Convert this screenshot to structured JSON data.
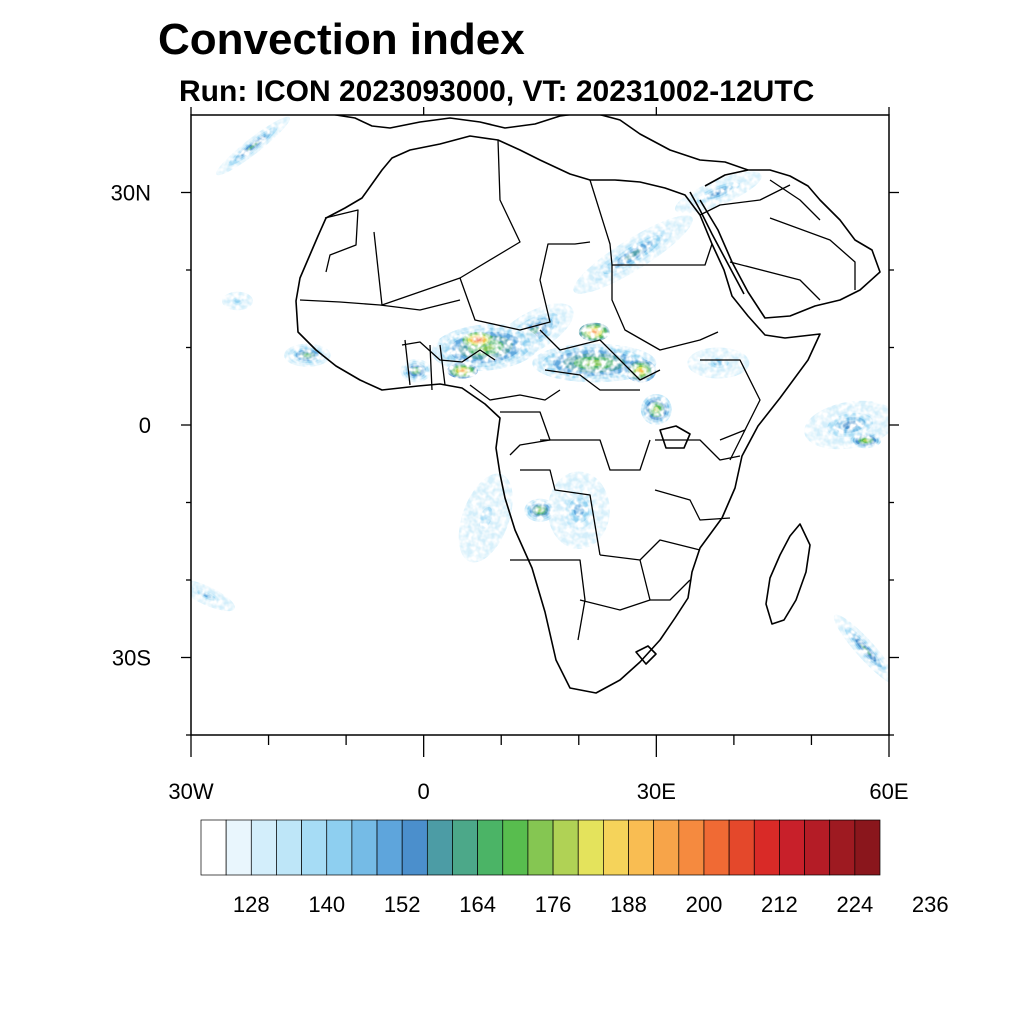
{
  "title": "Convection index",
  "subtitle": "Run: ICON 2023093000,  VT: 20231002-12UTC",
  "map": {
    "lon_range": [
      -30,
      60
    ],
    "lat_range": [
      -40,
      40
    ],
    "lat_ticks": [
      {
        "value": 30,
        "label": "30N"
      },
      {
        "value": 0,
        "label": "0"
      },
      {
        "value": -30,
        "label": "30S"
      }
    ],
    "lon_ticks": [
      {
        "value": -30,
        "label": "30W"
      },
      {
        "value": 0,
        "label": "0"
      },
      {
        "value": 30,
        "label": "30E"
      },
      {
        "value": 60,
        "label": "60E"
      }
    ],
    "minor_lon_ticks": [
      -20,
      -10,
      10,
      20,
      40,
      50
    ],
    "minor_lat_ticks": [
      20,
      10,
      -10,
      -20,
      -40
    ]
  },
  "colorbar": {
    "colors": [
      "#ffffff",
      "#e9f6fd",
      "#d3eefb",
      "#bee6f8",
      "#a6dcf5",
      "#8ecff0",
      "#75bbe6",
      "#5ea5dc",
      "#4b8fcc",
      "#4c9ca5",
      "#4ca889",
      "#4bb466",
      "#58bd4e",
      "#85c652",
      "#b0d255",
      "#e4e35c",
      "#f5d35a",
      "#f9bd52",
      "#f7a449",
      "#f58a3f",
      "#f06a34",
      "#e4482b",
      "#d92a27",
      "#c8202a",
      "#b41c26",
      "#9e1a21",
      "#8a161c"
    ],
    "labels": [
      "128",
      "140",
      "152",
      "164",
      "176",
      "188",
      "200",
      "212",
      "224",
      "236"
    ],
    "label_every": 3,
    "label_first_boundary": 2
  },
  "fields": [
    {
      "lon": 27,
      "lat": 22,
      "rx": 9,
      "ry": 2.0,
      "rot": -32,
      "level": 9
    },
    {
      "lon": 38,
      "lat": 30,
      "rx": 6,
      "ry": 1.6,
      "rot": -22,
      "level": 8
    },
    {
      "lon": 14,
      "lat": 12,
      "rx": 6,
      "ry": 2.5,
      "rot": -30,
      "level": 10
    },
    {
      "lon": 8,
      "lat": 10,
      "rx": 7,
      "ry": 3,
      "rot": -5,
      "level": 13
    },
    {
      "lon": 7,
      "lat": 11,
      "rx": 2,
      "ry": 1,
      "rot": 0,
      "level": 21
    },
    {
      "lon": 5,
      "lat": 7,
      "rx": 2,
      "ry": 1,
      "rot": 0,
      "level": 18
    },
    {
      "lon": 22,
      "lat": 8,
      "rx": 8,
      "ry": 2.5,
      "rot": 0,
      "level": 13
    },
    {
      "lon": 22,
      "lat": 12,
      "rx": 2,
      "ry": 1.2,
      "rot": 0,
      "level": 19
    },
    {
      "lon": 28,
      "lat": 7,
      "rx": 2,
      "ry": 1.5,
      "rot": 0,
      "level": 17
    },
    {
      "lon": 30,
      "lat": 2,
      "rx": 2,
      "ry": 2,
      "rot": 0,
      "level": 14
    },
    {
      "lon": -15,
      "lat": 9,
      "rx": 3,
      "ry": 1.5,
      "rot": 0,
      "level": 11
    },
    {
      "lon": -1,
      "lat": 7,
      "rx": 2,
      "ry": 1.5,
      "rot": 0,
      "level": 12
    },
    {
      "lon": 20,
      "lat": -11,
      "rx": 4,
      "ry": 5,
      "rot": 0,
      "level": 7
    },
    {
      "lon": 15,
      "lat": -11,
      "rx": 2,
      "ry": 1.5,
      "rot": 0,
      "level": 13
    },
    {
      "lon": 55,
      "lat": 0,
      "rx": 6,
      "ry": 3,
      "rot": -10,
      "level": 8
    },
    {
      "lon": 57,
      "lat": -2,
      "rx": 2,
      "ry": 1,
      "rot": 0,
      "level": 14
    },
    {
      "lon": 57,
      "lat": -29,
      "rx": 6,
      "ry": 1.2,
      "rot": 48,
      "level": 10
    },
    {
      "lon": -22,
      "lat": 36,
      "rx": 6,
      "ry": 1.0,
      "rot": -38,
      "level": 10
    },
    {
      "lon": -28,
      "lat": -22,
      "rx": 4,
      "ry": 1.2,
      "rot": 25,
      "level": 7
    },
    {
      "lon": 38,
      "lat": 8,
      "rx": 4,
      "ry": 2,
      "rot": 0,
      "level": 6
    },
    {
      "lon": 8,
      "lat": -12,
      "rx": 3,
      "ry": 6,
      "rot": 20,
      "level": 4
    },
    {
      "lon": -24,
      "lat": 16,
      "rx": 2,
      "ry": 1.2,
      "rot": 0,
      "level": 5
    }
  ]
}
